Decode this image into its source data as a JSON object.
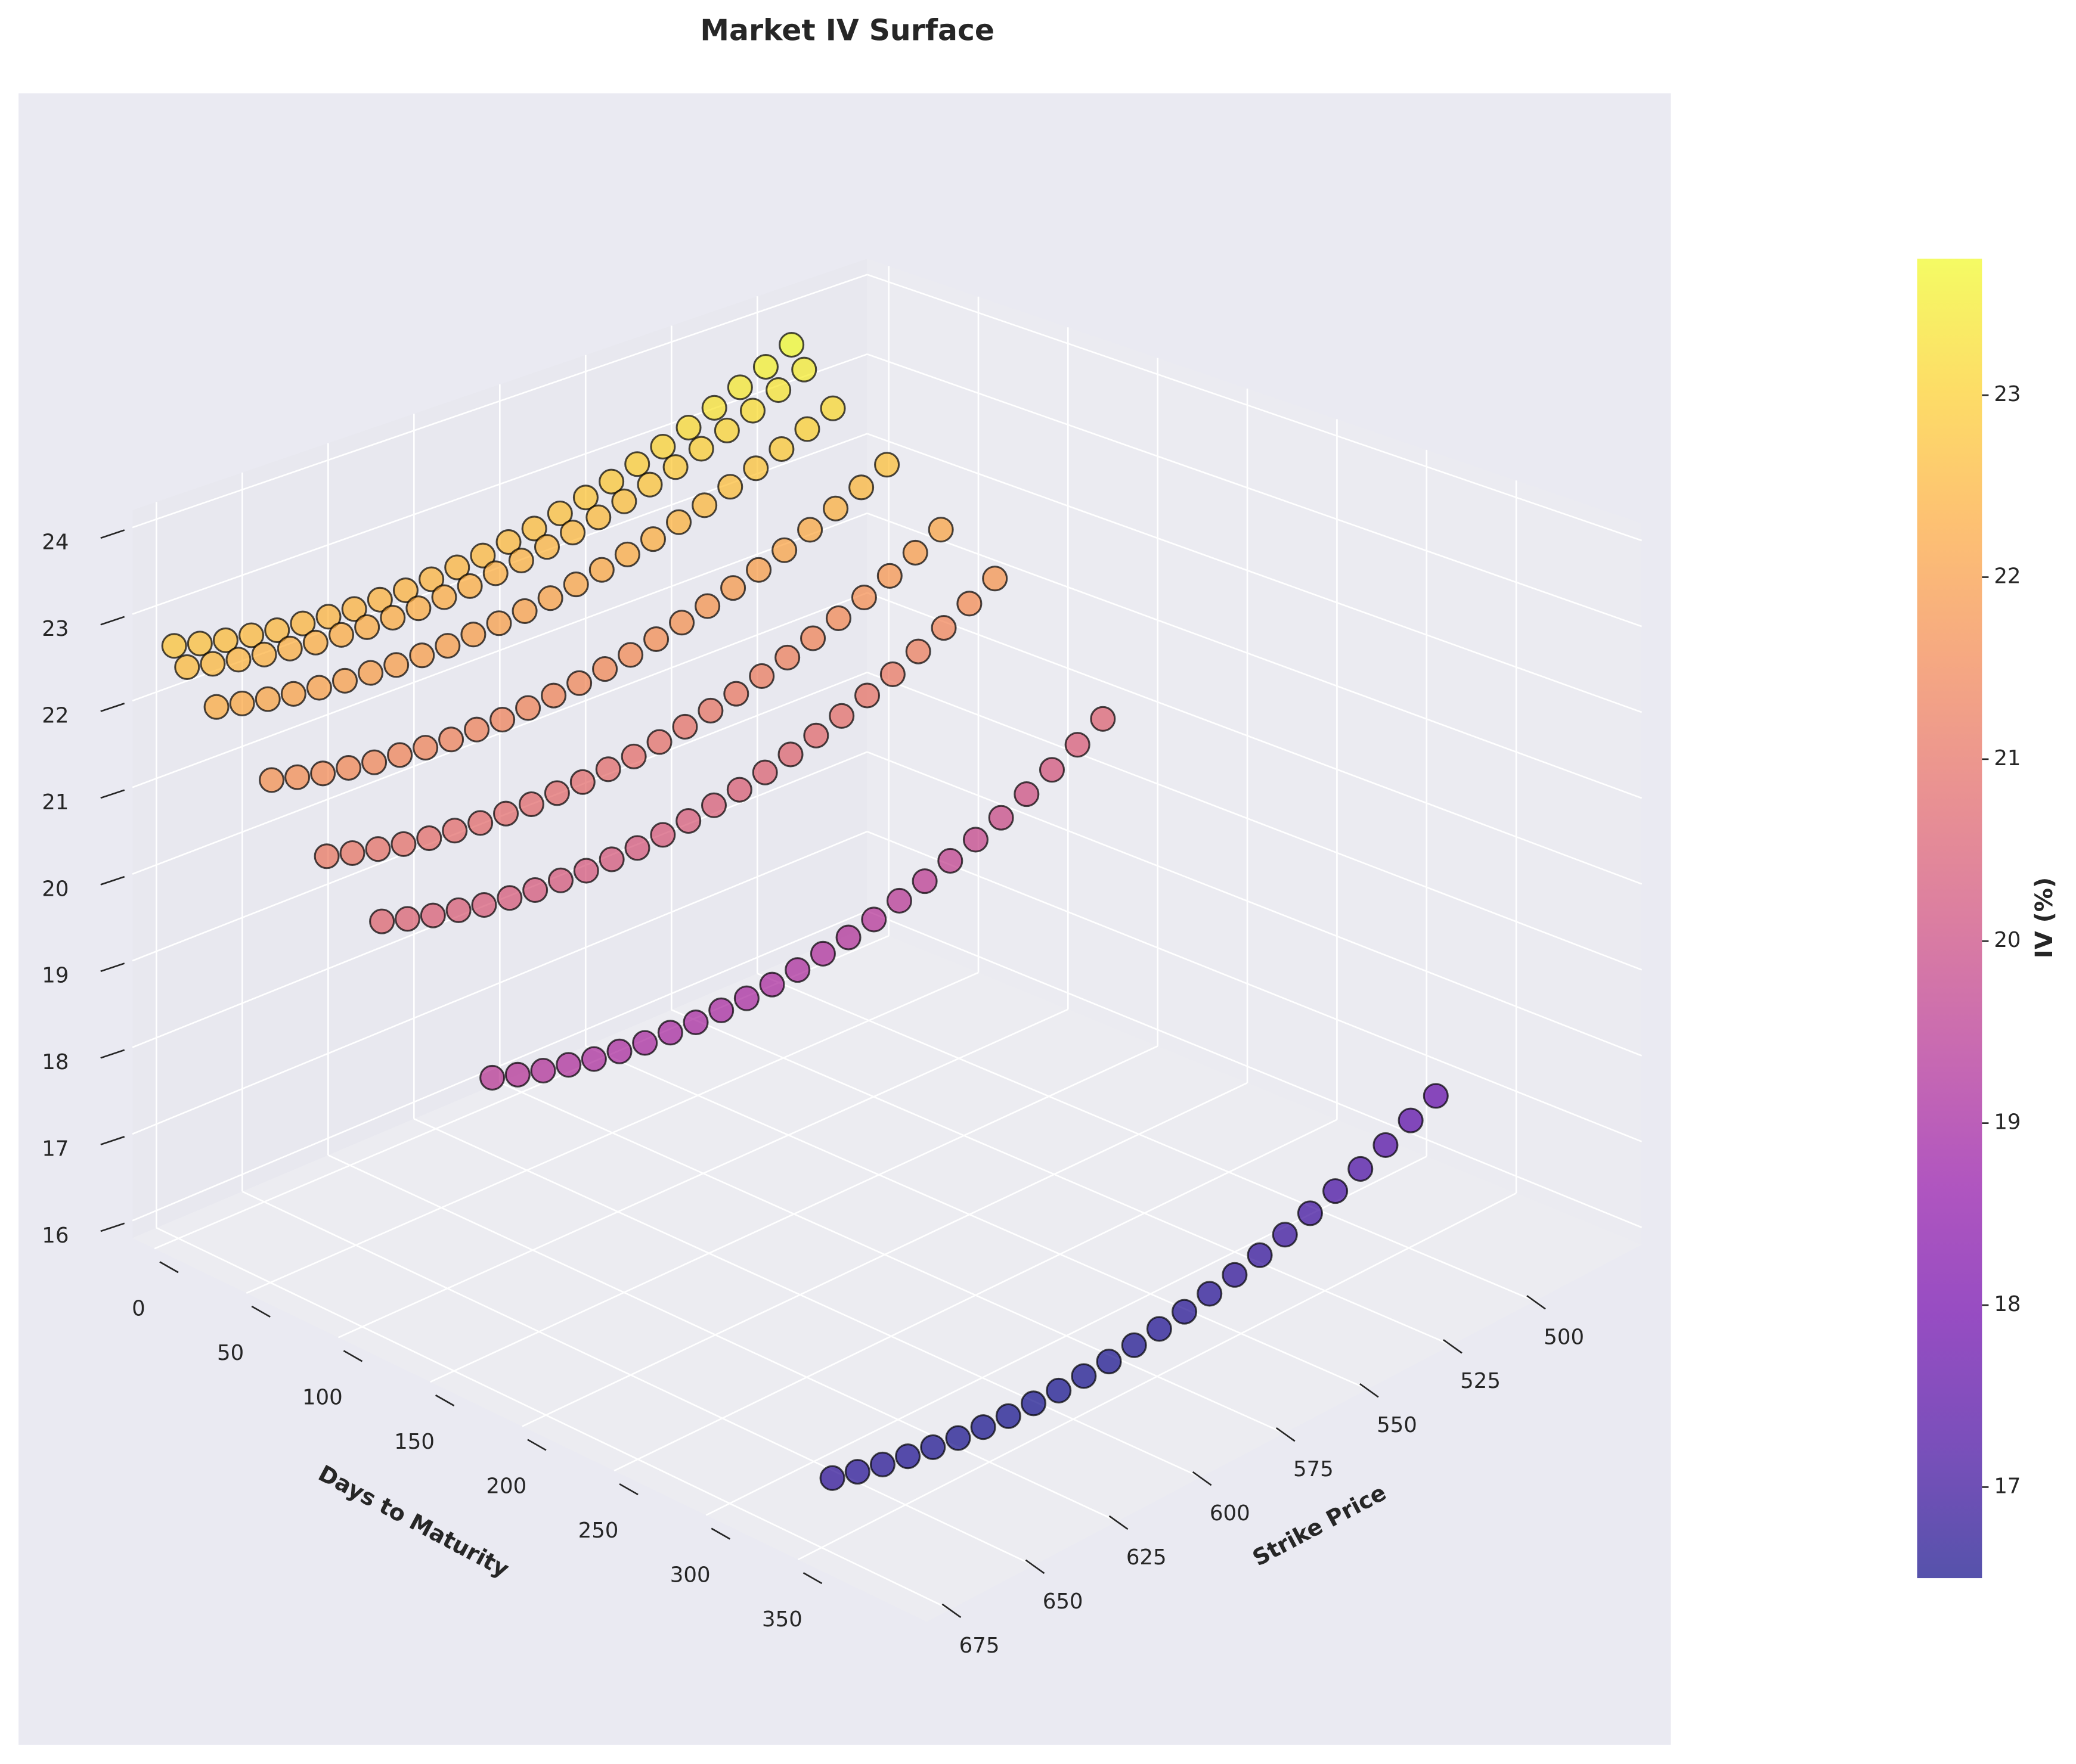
{
  "chart_data": {
    "type": "scatter3d",
    "title": "Market IV Surface",
    "x_label": "Strike Price",
    "y_label": "Days to Maturity",
    "colorbar_label": "IV (%)",
    "colormap": "plasma",
    "alpha": 0.7,
    "grid": true,
    "x": [
      500,
      507.5,
      515,
      522.5,
      530,
      537.5,
      545,
      552.5,
      560,
      567.5,
      575,
      582.5,
      590,
      597.5,
      605,
      612.5,
      620,
      627.5,
      635,
      642.5,
      650,
      657.5,
      665,
      672.5,
      680
    ],
    "xlim": [
      468,
      682
    ],
    "xticks": [
      500,
      525,
      550,
      575,
      600,
      625,
      650,
      675
    ],
    "ylim": [
      -12,
      420
    ],
    "yticks": [
      0,
      50,
      100,
      150,
      200,
      250,
      300,
      350
    ],
    "zlim": [
      15.8,
      24.2
    ],
    "zticks": [
      16,
      17,
      18,
      19,
      20,
      21,
      22,
      23,
      24
    ],
    "clim": [
      16.5,
      23.75
    ],
    "colorbar_ticks": [
      17,
      18,
      19,
      20,
      21,
      22,
      23
    ],
    "series": [
      {
        "days": 7,
        "values": [
          23.75,
          23.59,
          23.45,
          23.31,
          23.18,
          23.06,
          22.96,
          22.86,
          22.78,
          22.7,
          22.63,
          22.58,
          22.53,
          22.5,
          22.47,
          22.45,
          22.45,
          22.45,
          22.47,
          22.5,
          22.53,
          22.58,
          22.63,
          22.7,
          22.78
        ]
      },
      {
        "days": 14,
        "values": [
          23.5,
          23.36,
          23.22,
          23.09,
          22.98,
          22.87,
          22.77,
          22.68,
          22.6,
          22.53,
          22.47,
          22.42,
          22.38,
          22.34,
          22.32,
          22.3,
          22.3,
          22.3,
          22.32,
          22.34,
          22.38,
          22.42,
          22.47,
          22.53,
          22.6
        ]
      },
      {
        "days": 30,
        "values": [
          23.15,
          23.01,
          22.88,
          22.76,
          22.65,
          22.54,
          22.45,
          22.36,
          22.29,
          22.22,
          22.16,
          22.11,
          22.07,
          22.04,
          22.02,
          22.0,
          22.0,
          22.0,
          22.02,
          22.04,
          22.07,
          22.11,
          22.16,
          22.22,
          22.29
        ]
      },
      {
        "days": 60,
        "values": [
          22.7,
          22.54,
          22.4,
          22.26,
          22.13,
          22.01,
          21.91,
          21.81,
          21.73,
          21.65,
          21.58,
          21.53,
          21.48,
          21.45,
          21.42,
          21.4,
          21.4,
          21.4,
          21.42,
          21.45,
          21.48,
          21.53,
          21.58,
          21.65,
          21.73
        ]
      },
      {
        "days": 90,
        "values": [
          22.15,
          21.99,
          21.83,
          21.69,
          21.56,
          21.44,
          21.33,
          21.23,
          21.14,
          21.06,
          20.99,
          20.93,
          20.88,
          20.85,
          20.82,
          20.81,
          20.8,
          20.81,
          20.82,
          20.85,
          20.88,
          20.93,
          20.99,
          21.06,
          21.14
        ]
      },
      {
        "days": 120,
        "values": [
          21.8,
          21.62,
          21.45,
          21.29,
          21.14,
          21.01,
          20.89,
          20.78,
          20.68,
          20.59,
          20.51,
          20.45,
          20.39,
          20.35,
          20.32,
          20.31,
          20.3,
          20.31,
          20.32,
          20.35,
          20.39,
          20.45,
          20.51,
          20.59,
          20.68
        ]
      },
      {
        "days": 180,
        "values": [
          20.6,
          20.42,
          20.25,
          20.09,
          19.94,
          19.81,
          19.69,
          19.58,
          19.48,
          19.39,
          19.31,
          19.25,
          19.19,
          19.15,
          19.12,
          19.11,
          19.1,
          19.11,
          19.12,
          19.15,
          19.19,
          19.25,
          19.31,
          19.39,
          19.48
        ]
      },
      {
        "days": 365,
        "values": [
          17.7,
          17.56,
          17.42,
          17.29,
          17.18,
          17.07,
          16.97,
          16.88,
          16.8,
          16.73,
          16.67,
          16.62,
          16.58,
          16.54,
          16.52,
          16.5,
          16.5,
          16.5,
          16.52,
          16.54,
          16.58,
          16.62,
          16.67,
          16.73,
          16.8
        ]
      }
    ]
  }
}
